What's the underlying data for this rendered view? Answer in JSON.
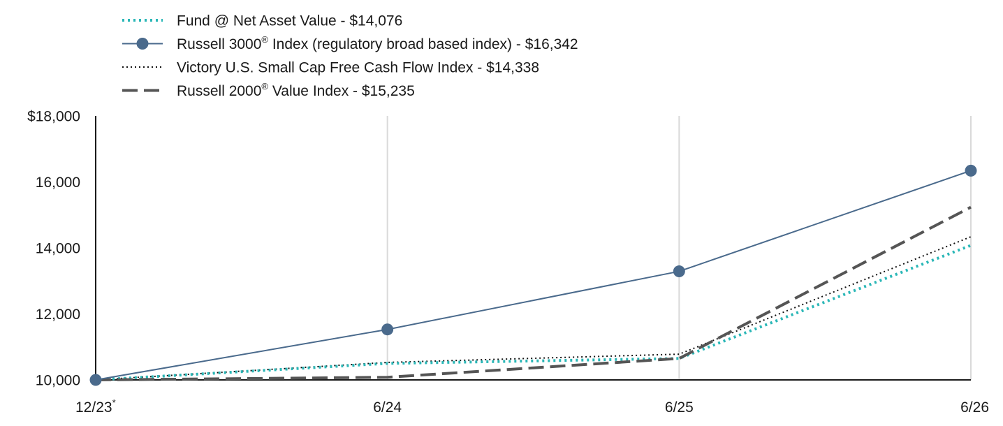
{
  "chart_data": {
    "type": "line",
    "categories": [
      "12/23",
      "6/24",
      "6/25",
      "6/26"
    ],
    "first_category_marker": "*",
    "ylim": [
      10000,
      18000
    ],
    "y_ticks": [
      {
        "value": 10000,
        "label": "10,000"
      },
      {
        "value": 12000,
        "label": "12,000"
      },
      {
        "value": 14000,
        "label": "14,000"
      },
      {
        "value": 16000,
        "label": "16,000"
      },
      {
        "value": 18000,
        "label": "$18,000"
      }
    ],
    "grid": "vertical",
    "legend_position": "top-left",
    "series": [
      {
        "key": "fund",
        "legend_before": "Fund @ Net Asset Value - $14,076",
        "legend_sup": "",
        "legend_after": "",
        "color": "#2ab7b7",
        "style": "dotted-thick",
        "markers": false,
        "values": [
          10000,
          10500,
          10650,
          14076
        ]
      },
      {
        "key": "russell3000",
        "legend_before": "Russell 3000",
        "legend_sup": "®",
        "legend_after": " Index (regulatory broad based index) - $16,342",
        "color": "#4a6a8c",
        "style": "solid",
        "markers": true,
        "values": [
          10000,
          11530,
          13290,
          16342
        ]
      },
      {
        "key": "victory",
        "legend_before": "Victory U.S. Small Cap Free Cash Flow Index - $14,338",
        "legend_sup": "",
        "legend_after": "",
        "color": "#111111",
        "style": "dotted-thin",
        "markers": false,
        "values": [
          10000,
          10530,
          10780,
          14338
        ]
      },
      {
        "key": "russell2000v",
        "legend_before": "Russell 2000",
        "legend_sup": "®",
        "legend_after": " Value Index - $15,235",
        "color": "#555555",
        "style": "dashed",
        "markers": false,
        "values": [
          10000,
          10080,
          10650,
          15235
        ]
      }
    ]
  }
}
